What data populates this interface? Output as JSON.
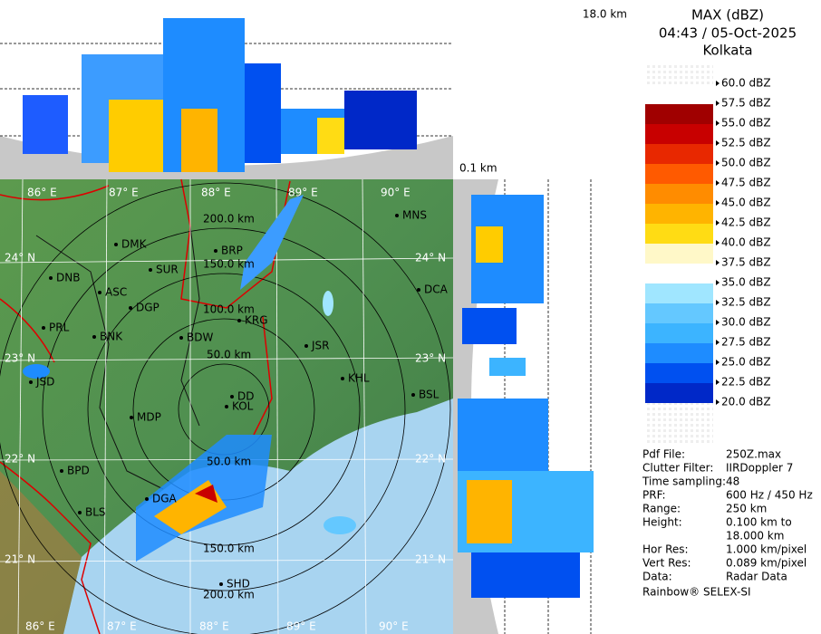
{
  "header": {
    "title": "MAX (dBZ)",
    "time": "04:43 / 05-Oct-2025",
    "location": "Kolkata"
  },
  "height_labels": {
    "top": "18.0 km",
    "bottom": "0.1 km"
  },
  "legend": [
    {
      "label": "60.0 dBZ",
      "color": "#ffffff"
    },
    {
      "label": "57.5 dBZ",
      "color": "#a00000"
    },
    {
      "label": "55.0 dBZ",
      "color": "#c80000"
    },
    {
      "label": "52.5 dBZ",
      "color": "#e82800"
    },
    {
      "label": "50.0 dBZ",
      "color": "#ff5a00"
    },
    {
      "label": "47.5 dBZ",
      "color": "#ff8c00"
    },
    {
      "label": "45.0 dBZ",
      "color": "#ffb400"
    },
    {
      "label": "42.5 dBZ",
      "color": "#ffdc14"
    },
    {
      "label": "40.0 dBZ",
      "color": "#fff8c8"
    },
    {
      "label": "37.5 dBZ",
      "color": "#ffffff"
    },
    {
      "label": "35.0 dBZ",
      "color": "#a0e6ff"
    },
    {
      "label": "32.5 dBZ",
      "color": "#64c8ff"
    },
    {
      "label": "30.0 dBZ",
      "color": "#3cb4ff"
    },
    {
      "label": "27.5 dBZ",
      "color": "#1e8cff"
    },
    {
      "label": "25.0 dBZ",
      "color": "#0050f0"
    },
    {
      "label": "22.5 dBZ",
      "color": "#0028c8"
    },
    {
      "label": "20.0 dBZ",
      "color": "#0000a0"
    }
  ],
  "info": [
    {
      "label": "Pdf File:",
      "value": "250Z.max"
    },
    {
      "label": "Clutter Filter:",
      "value": "IIRDoppler 7"
    },
    {
      "label": "Time sampling:",
      "value": "48"
    },
    {
      "label": "PRF:",
      "value": "600 Hz / 450 Hz"
    },
    {
      "label": "Range:",
      "value": "250 km"
    },
    {
      "label": "Height:",
      "value": "0.100 km to"
    },
    {
      "label": "",
      "value": "18.000 km"
    },
    {
      "label": "Hor Res:",
      "value": "1.000 km/pixel"
    },
    {
      "label": "Vert Res:",
      "value": "0.089 km/pixel"
    },
    {
      "label": "Data:",
      "value": "Radar Data"
    }
  ],
  "footer": "Rainbow® SELEX-SI",
  "map": {
    "longitudes": [
      "86° E",
      "87° E",
      "88° E",
      "89° E",
      "90° E"
    ],
    "latitudes": [
      "24° N",
      "23° N",
      "22° N",
      "21° N"
    ],
    "range_labels": [
      "200.0 km",
      "150.0 km",
      "100.0 km",
      "50.0 km",
      "50.0 km",
      "150.0 km",
      "200.0 km"
    ],
    "cities": [
      "MNS",
      "DMK",
      "BRP",
      "SUR",
      "DNB",
      "ASC",
      "DGP",
      "DCA",
      "KRG",
      "PRL",
      "BNK",
      "BDW",
      "JSR",
      "KHL",
      "JSD",
      "DD",
      "KOL",
      "BSL",
      "MDP",
      "BPD",
      "DGA",
      "BLS",
      "SHD"
    ]
  }
}
